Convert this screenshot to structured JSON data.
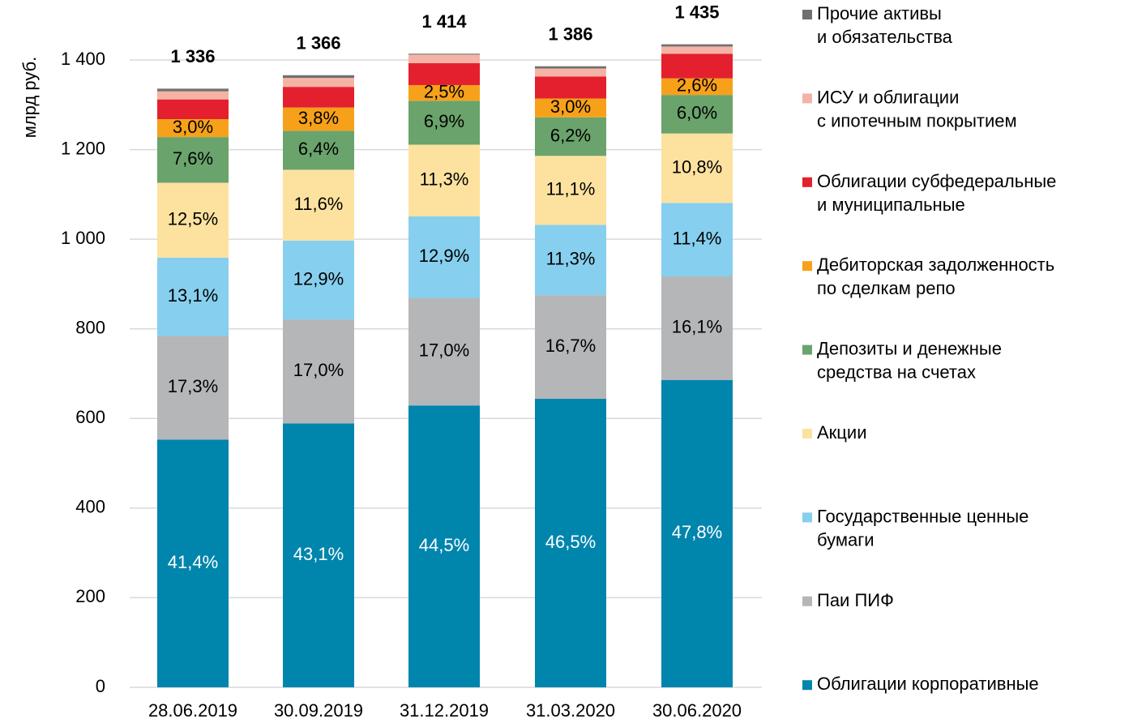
{
  "chart_data": {
    "type": "stacked_bar",
    "y_label": "млрд руб.",
    "categories": [
      "28.06.2019",
      "30.09.2019",
      "31.12.2019",
      "31.03.2020",
      "30.06.2020"
    ],
    "ylim": [
      0,
      1400
    ],
    "yticks": [
      0,
      200,
      400,
      600,
      800,
      {
        "value": 1000,
        "label": "1 000"
      },
      {
        "value": 1200,
        "label": "1 200"
      },
      {
        "value": 1400,
        "label": "1 400"
      }
    ],
    "grid": true,
    "legend": "right",
    "totals": [
      1336,
      1366,
      1414,
      1386,
      1435
    ],
    "total_labels": [
      "1 336",
      "1 366",
      "1 414",
      "1 386",
      "1 435"
    ],
    "series": [
      {
        "name": "Облигации корпоративные",
        "color": "#0085ad",
        "values": [
          553,
          589,
          629,
          644,
          686
        ],
        "labels": [
          "41,4%",
          "43,1%",
          "44,5%",
          "46,5%",
          "47,8%"
        ]
      },
      {
        "name": "Паи ПИФ",
        "color": "#b5b6b8",
        "values": [
          231,
          232,
          240,
          231,
          231
        ],
        "labels": [
          "17,3%",
          "17,0%",
          "17,0%",
          "16,7%",
          "16,1%"
        ]
      },
      {
        "name": "Государственные ценные\nбумаги",
        "color": "#87cfee",
        "values": [
          175,
          176,
          182,
          157,
          164
        ],
        "labels": [
          "13,1%",
          "12,9%",
          "12,9%",
          "11,3%",
          "11,4%"
        ]
      },
      {
        "name": "Акции",
        "color": "#fde29f",
        "values": [
          167,
          158,
          160,
          154,
          155
        ],
        "labels": [
          "12,5%",
          "11,6%",
          "11,3%",
          "11,1%",
          "10,8%"
        ]
      },
      {
        "name": "Депозиты и денежные\nсредства на счетах",
        "color": "#6aa36b",
        "values": [
          102,
          87,
          98,
          86,
          86
        ],
        "labels": [
          "7,6%",
          "6,4%",
          "6,9%",
          "6,2%",
          "6,0%"
        ]
      },
      {
        "name": "Дебиторская задолженность\nпо сделкам репо",
        "color": "#f7a11a",
        "values": [
          40,
          52,
          35,
          42,
          37
        ],
        "labels": [
          "3,0%",
          "3,8%",
          "2,5%",
          "3,0%",
          "2,6%"
        ]
      },
      {
        "name": "Облигации субфедеральные\nи муниципальные",
        "color": "#e4202e",
        "values": [
          44,
          46,
          49,
          49,
          55
        ]
      },
      {
        "name": "ИСУ и облигации\nс ипотечным покрытием",
        "color": "#f5b3a6",
        "values": [
          18,
          20,
          19,
          18,
          16
        ]
      },
      {
        "name": "Прочие активы\nи обязательства",
        "color": "#707070",
        "values": [
          6,
          6,
          2,
          5,
          5
        ]
      }
    ]
  }
}
